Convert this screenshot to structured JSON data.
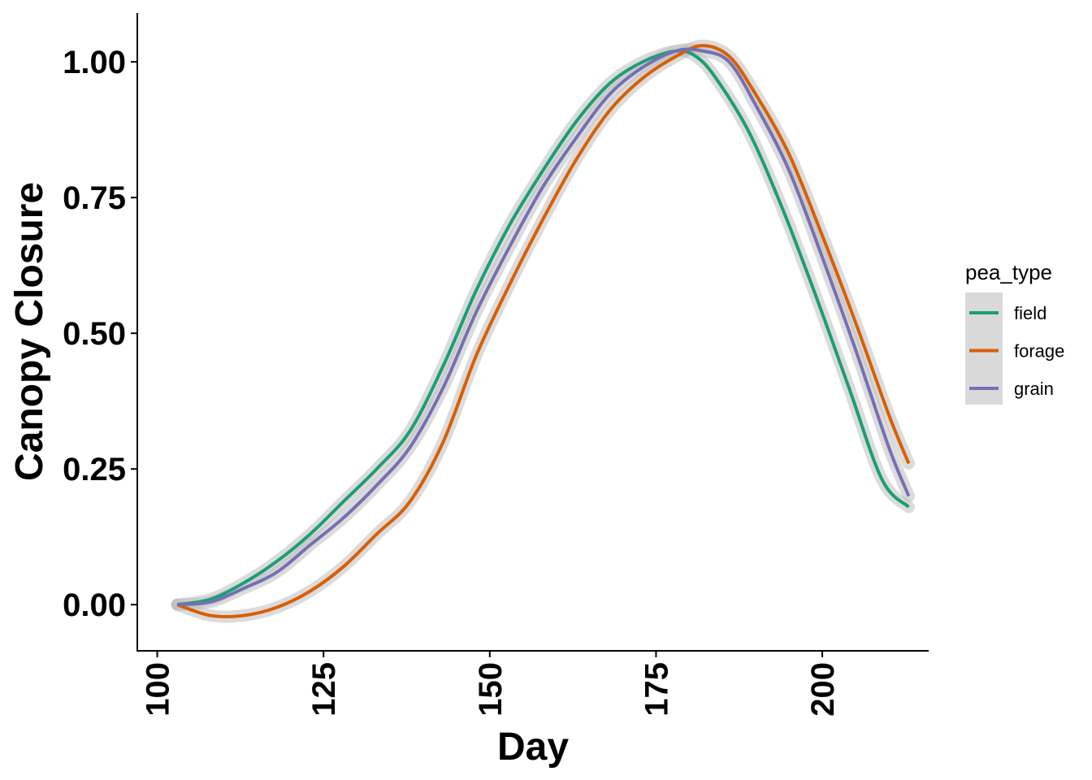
{
  "chart_data": {
    "type": "line",
    "xlabel": "Day",
    "ylabel": "Canopy Closure",
    "xlim": [
      97,
      216
    ],
    "ylim": [
      -0.085,
      1.09
    ],
    "x_ticks": [
      100,
      125,
      150,
      175,
      200
    ],
    "x_tick_labels": [
      "100",
      "125",
      "150",
      "175",
      "200"
    ],
    "y_ticks": [
      0,
      0.25,
      0.5,
      0.75,
      1.0
    ],
    "y_tick_labels": [
      "0.00",
      "0.25",
      "0.50",
      "0.75",
      "1.00"
    ],
    "grid": false,
    "confidence_band": true,
    "legend": {
      "title": "pea_type",
      "position": "right"
    },
    "series": [
      {
        "name": "field",
        "color": "#1b9e77",
        "x": [
          103,
          108,
          113,
          118,
          123,
          128,
          133,
          138,
          143,
          148,
          153,
          158,
          163,
          168,
          173,
          178,
          181,
          184,
          189,
          194,
          199,
          204,
          209,
          213
        ],
        "y": [
          0.0,
          0.01,
          0.04,
          0.08,
          0.13,
          0.19,
          0.25,
          0.32,
          0.44,
          0.58,
          0.7,
          0.8,
          0.89,
          0.96,
          1.0,
          1.02,
          1.01,
          0.97,
          0.87,
          0.73,
          0.57,
          0.4,
          0.23,
          0.18
        ]
      },
      {
        "name": "forage",
        "color": "#d95f02",
        "x": [
          103,
          108,
          113,
          118,
          123,
          128,
          133,
          138,
          143,
          148,
          153,
          158,
          163,
          168,
          173,
          178,
          182,
          186,
          190,
          195,
          200,
          205,
          210,
          213
        ],
        "y": [
          0.0,
          -0.02,
          -0.02,
          -0.005,
          0.025,
          0.07,
          0.13,
          0.19,
          0.3,
          0.46,
          0.59,
          0.71,
          0.82,
          0.91,
          0.97,
          1.01,
          1.03,
          1.01,
          0.94,
          0.83,
          0.68,
          0.52,
          0.35,
          0.26
        ]
      },
      {
        "name": "grain",
        "color": "#7570b3",
        "x": [
          103,
          108,
          113,
          118,
          123,
          128,
          133,
          138,
          143,
          148,
          153,
          158,
          163,
          168,
          173,
          178,
          182,
          186,
          190,
          195,
          200,
          205,
          210,
          213
        ],
        "y": [
          0.0,
          0.005,
          0.03,
          0.06,
          0.11,
          0.16,
          0.22,
          0.29,
          0.4,
          0.54,
          0.66,
          0.77,
          0.86,
          0.94,
          0.99,
          1.02,
          1.02,
          1.0,
          0.92,
          0.8,
          0.64,
          0.47,
          0.29,
          0.2
        ]
      }
    ]
  }
}
